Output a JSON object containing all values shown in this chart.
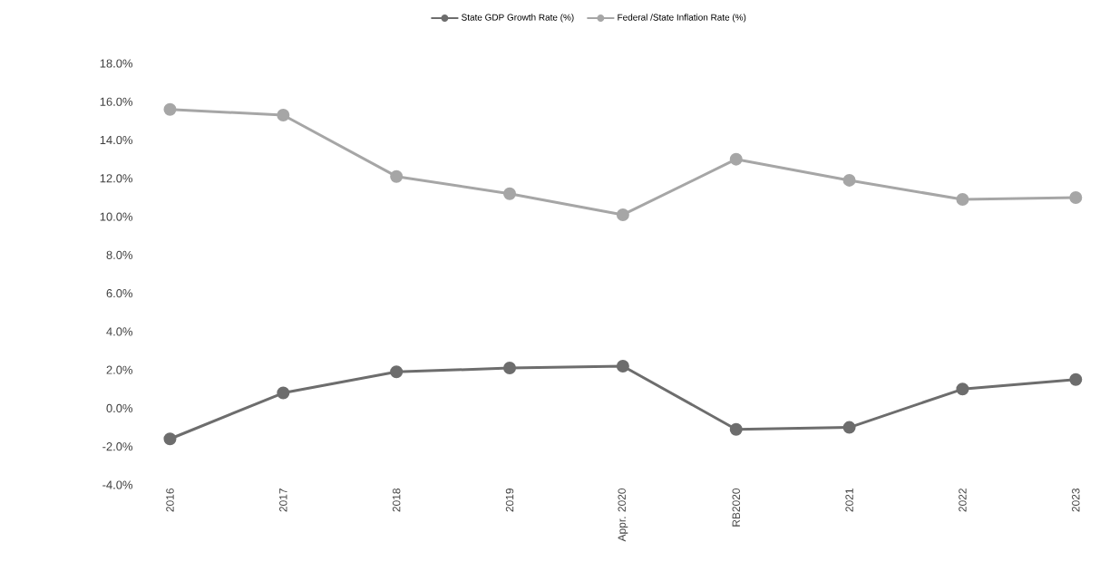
{
  "chart_data": {
    "type": "line",
    "categories": [
      "2016",
      "2017",
      "2018",
      "2019",
      "Appr. 2020",
      "RB2020",
      "2021",
      "2022",
      "2023"
    ],
    "series": [
      {
        "name": "State GDP Growth Rate  (%)",
        "color": "#6d6d6d",
        "values": [
          -1.6,
          0.8,
          1.9,
          2.1,
          2.2,
          -1.1,
          -1.0,
          1.0,
          1.5
        ]
      },
      {
        "name": "Federal /State Inflation Rate (%)",
        "color": "#a6a6a6",
        "values": [
          15.6,
          15.3,
          12.1,
          11.2,
          10.1,
          13.0,
          11.9,
          10.9,
          11.0
        ]
      }
    ],
    "ylim": [
      -4,
      18
    ],
    "yticks": [
      {
        "value": -4,
        "label": "-4.0%"
      },
      {
        "value": -2,
        "label": "-2.0%"
      },
      {
        "value": 0,
        "label": "0.0%"
      },
      {
        "value": 2,
        "label": "2.0%"
      },
      {
        "value": 4,
        "label": "4.0%"
      },
      {
        "value": 6,
        "label": "6.0%"
      },
      {
        "value": 8,
        "label": "8.0%"
      },
      {
        "value": 10,
        "label": "10.0%"
      },
      {
        "value": 12,
        "label": "12.0%"
      },
      {
        "value": 14,
        "label": "14.0%"
      },
      {
        "value": 16,
        "label": "16.0%"
      },
      {
        "value": 18,
        "label": "18.0%"
      }
    ],
    "grid": false,
    "legend": "top",
    "marker": "circle",
    "line_style": "solid"
  }
}
